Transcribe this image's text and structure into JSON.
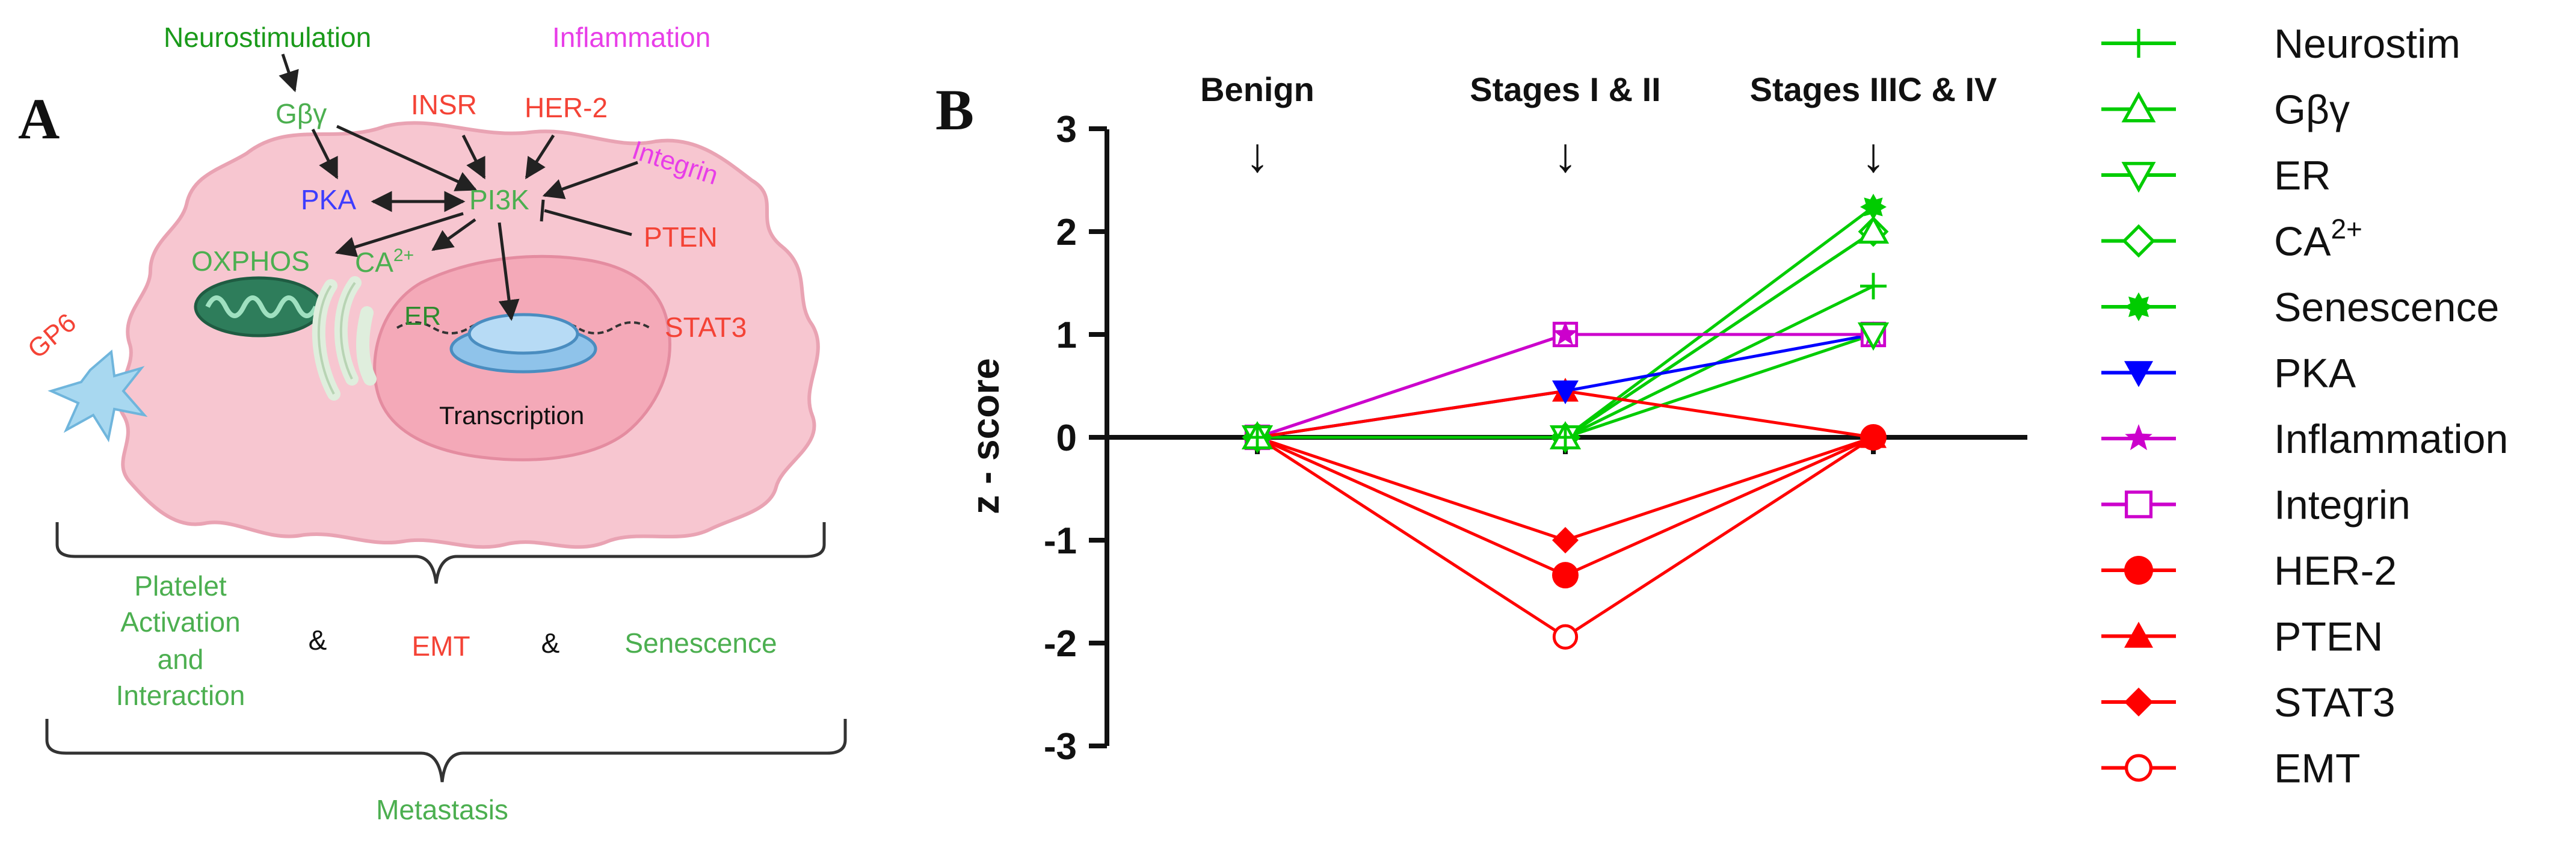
{
  "panel_a": {
    "label": "A",
    "colors": {
      "green": "#4caf50",
      "red": "#f44336",
      "blue": "#3d3dff",
      "magenta": "#e83ee8",
      "dark_green": "#1a7f1a",
      "cell_fill": "#f7c6d0",
      "nucleus_fill": "#f4a9b8"
    },
    "signals": {
      "neurostimulation": "Neurostimulation",
      "inflammation": "Inflammation",
      "gbg": "Gβγ",
      "insr": "INSR",
      "her2": "HER-2",
      "integrin": "Integrin",
      "pka": "PKA",
      "pi3k": "PI3K",
      "pten": "PTEN",
      "oxphos": "OXPHOS",
      "ca": "CA",
      "ca_sup": "2+",
      "er": "ER",
      "stat3": "STAT3",
      "transcription": "Transcription",
      "gp6": "GP6"
    },
    "outcomes": {
      "platelet_1": "Platelet",
      "platelet_2": "Activation",
      "platelet_3": "and",
      "platelet_4": "Interaction",
      "amp1": "&",
      "emt": "EMT",
      "amp2": "&",
      "senescence": "Senescence",
      "metastasis": "Metastasis"
    }
  },
  "panel_b": {
    "label": "B"
  },
  "chart_data": {
    "type": "line",
    "title": "",
    "xlabel": "",
    "ylabel": "z - score",
    "categories": [
      "Benign",
      "Stages I & II",
      "Stages IIIC & IV"
    ],
    "x_arrow": "↓",
    "ylim": [
      -3,
      3
    ],
    "yticks": [
      "-3",
      "-2",
      "-1",
      "0",
      "1",
      "2",
      "3"
    ],
    "legend_position": "right",
    "series": [
      {
        "name": "Neurostim",
        "values": [
          0,
          0,
          1.47
        ],
        "color": "#00cc00",
        "marker": "plus"
      },
      {
        "name": "Gβγ",
        "values": [
          0,
          0,
          2.0
        ],
        "color": "#00cc00",
        "marker": "triangle-up-open"
      },
      {
        "name": "ER",
        "values": [
          0,
          0,
          1.0
        ],
        "color": "#00cc00",
        "marker": "triangle-down-open"
      },
      {
        "name": "CA",
        "name_sup": "2+",
        "values": [
          0,
          0,
          2.0
        ],
        "color": "#00cc00",
        "marker": "diamond-open"
      },
      {
        "name": "Senescence",
        "values": [
          0,
          0,
          2.24
        ],
        "color": "#00cc00",
        "marker": "star-filled"
      },
      {
        "name": "PKA",
        "values": [
          0,
          0.45,
          1.0
        ],
        "color": "#0000ff",
        "marker": "triangle-down"
      },
      {
        "name": "Inflammation",
        "values": [
          0,
          1.0,
          1.0
        ],
        "color": "#cc00cc",
        "marker": "star"
      },
      {
        "name": "Integrin",
        "values": [
          0,
          1.0,
          1.0
        ],
        "color": "#cc00cc",
        "marker": "square-open"
      },
      {
        "name": "HER-2",
        "values": [
          0,
          -1.34,
          0
        ],
        "color": "#ff0000",
        "marker": "circle"
      },
      {
        "name": "PTEN",
        "values": [
          0,
          0.45,
          0
        ],
        "color": "#ff0000",
        "marker": "triangle-up"
      },
      {
        "name": "STAT3",
        "values": [
          0,
          -1.0,
          0
        ],
        "color": "#ff0000",
        "marker": "diamond"
      },
      {
        "name": "EMT",
        "values": [
          0,
          -1.94,
          0
        ],
        "color": "#ff0000",
        "marker": "circle-open"
      }
    ]
  }
}
